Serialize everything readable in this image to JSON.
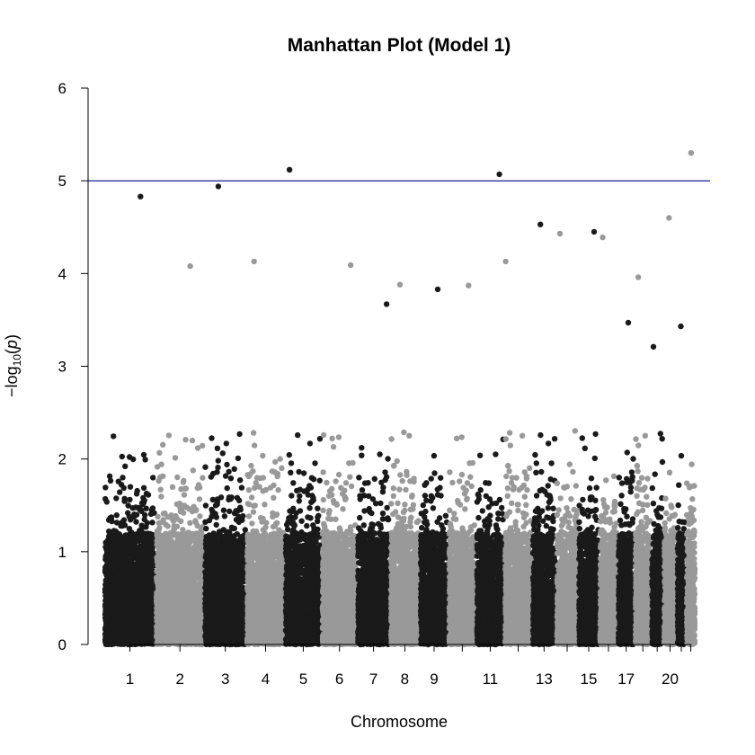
{
  "chart_data": {
    "type": "scatter",
    "title": "Manhattan Plot (Model 1)",
    "xlabel": "Chromosome",
    "ylabel_prefix": "−log",
    "ylabel_sub": "10",
    "ylabel_open": "(",
    "ylabel_var": "p",
    "ylabel_close": ")",
    "ylim": [
      0,
      6
    ],
    "yticks": [
      0,
      1,
      2,
      3,
      4,
      5,
      6
    ],
    "threshold": {
      "value": 5,
      "color": "#00008b"
    },
    "colors": {
      "odd": "#1a1a1a",
      "even": "#999999"
    },
    "chromosomes": [
      {
        "chr": 1,
        "label": "1",
        "peak": 4.83
      },
      {
        "chr": 2,
        "label": "2",
        "peak": 4.08
      },
      {
        "chr": 3,
        "label": "3",
        "peak": 4.94
      },
      {
        "chr": 4,
        "label": "4",
        "peak": 4.13
      },
      {
        "chr": 5,
        "label": "5",
        "peak": 5.12
      },
      {
        "chr": 6,
        "label": "6",
        "peak": 4.09
      },
      {
        "chr": 7,
        "label": "7",
        "peak": 3.67
      },
      {
        "chr": 8,
        "label": "8",
        "peak": 3.88
      },
      {
        "chr": 9,
        "label": "9",
        "peak": 3.83
      },
      {
        "chr": 10,
        "label": "",
        "peak": 3.87
      },
      {
        "chr": 11,
        "label": "11",
        "peak": 5.07
      },
      {
        "chr": 12,
        "label": "",
        "peak": 4.13
      },
      {
        "chr": 13,
        "label": "13",
        "peak": 4.53
      },
      {
        "chr": 14,
        "label": "",
        "peak": 4.43
      },
      {
        "chr": 15,
        "label": "15",
        "peak": 4.45
      },
      {
        "chr": 16,
        "label": "",
        "peak": 4.39
      },
      {
        "chr": 17,
        "label": "17",
        "peak": 3.47
      },
      {
        "chr": 18,
        "label": "",
        "peak": 3.96
      },
      {
        "chr": 19,
        "label": "",
        "peak": 3.21
      },
      {
        "chr": 20,
        "label": "20",
        "peak": 4.6
      },
      {
        "chr": 21,
        "label": "",
        "peak": 3.43
      },
      {
        "chr": 22,
        "label": "",
        "peak": 5.3
      }
    ]
  }
}
